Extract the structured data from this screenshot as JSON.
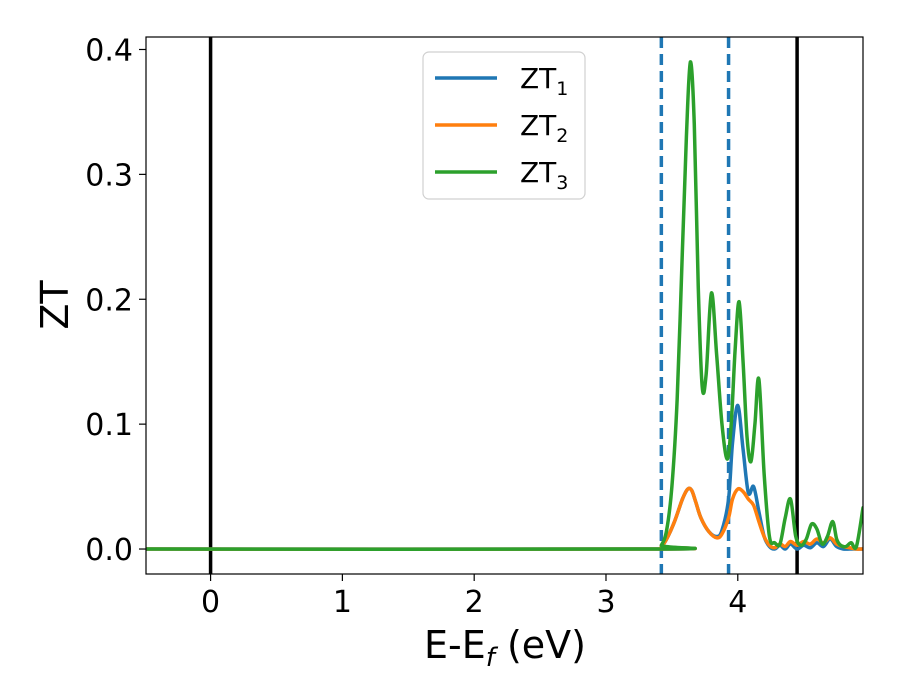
{
  "chart_data": {
    "type": "line",
    "title": "",
    "xlabel": {
      "main": "E-E",
      "sub": "f",
      "tail": " (eV)"
    },
    "ylabel": "ZT",
    "xlim": [
      -0.49,
      4.95
    ],
    "ylim": [
      -0.02,
      0.41
    ],
    "xticks": [
      0,
      1,
      2,
      3,
      4
    ],
    "xtick_labels": [
      "0",
      "1",
      "2",
      "3",
      "4"
    ],
    "yticks": [
      0.0,
      0.1,
      0.2,
      0.3,
      0.4
    ],
    "ytick_labels": [
      "0.0",
      "0.1",
      "0.2",
      "0.3",
      "0.4"
    ],
    "grid": false,
    "legend_position": "top-center",
    "vlines_solid": [
      0.0,
      4.45
    ],
    "vlines_dashed": [
      3.42,
      3.93
    ],
    "series": [
      {
        "name": "ZT",
        "name_sub": "1",
        "color": "#1f77b4",
        "x": [
          -0.49,
          3.38,
          3.42,
          3.46,
          3.52,
          3.58,
          3.62,
          3.65,
          3.68,
          3.72,
          3.78,
          3.84,
          3.88,
          3.93,
          3.96,
          4.0,
          4.04,
          4.08,
          4.12,
          4.16,
          4.2,
          4.24,
          4.28,
          4.32,
          4.36,
          4.4,
          4.45,
          4.5,
          4.55,
          4.6,
          4.65,
          4.7,
          4.75,
          4.8,
          4.85,
          4.9,
          4.95
        ],
        "y": [
          0.0,
          0.0,
          0.002,
          0.008,
          0.022,
          0.04,
          0.048,
          0.047,
          0.038,
          0.025,
          0.014,
          0.01,
          0.015,
          0.04,
          0.085,
          0.115,
          0.08,
          0.045,
          0.05,
          0.03,
          0.01,
          0.002,
          0.0,
          0.003,
          0.0,
          0.004,
          0.0,
          0.003,
          0.001,
          0.005,
          0.002,
          0.008,
          0.002,
          0.0,
          0.0,
          0.0,
          0.0
        ]
      },
      {
        "name": "ZT",
        "name_sub": "2",
        "color": "#ff7f0e",
        "x": [
          -0.49,
          3.38,
          3.42,
          3.46,
          3.52,
          3.58,
          3.62,
          3.65,
          3.68,
          3.72,
          3.78,
          3.84,
          3.88,
          3.93,
          3.96,
          4.0,
          4.04,
          4.08,
          4.12,
          4.16,
          4.2,
          4.24,
          4.28,
          4.32,
          4.36,
          4.4,
          4.45,
          4.5,
          4.55,
          4.6,
          4.65,
          4.7,
          4.75,
          4.8,
          4.85,
          4.9,
          4.95
        ],
        "y": [
          0.0,
          0.0,
          0.002,
          0.008,
          0.022,
          0.04,
          0.048,
          0.047,
          0.038,
          0.025,
          0.014,
          0.009,
          0.012,
          0.025,
          0.04,
          0.048,
          0.046,
          0.04,
          0.035,
          0.022,
          0.01,
          0.003,
          0.001,
          0.004,
          0.002,
          0.006,
          0.003,
          0.006,
          0.004,
          0.008,
          0.005,
          0.009,
          0.004,
          0.002,
          0.001,
          0.0,
          0.0
        ]
      },
      {
        "name": "ZT",
        "name_sub": "3",
        "color": "#2ca02c",
        "x": [
          -0.49,
          3.38,
          3.42,
          3.46,
          3.5,
          3.54,
          3.58,
          3.61,
          3.64,
          3.67,
          3.7,
          3.73,
          3.76,
          3.8,
          3.84,
          3.88,
          3.92,
          3.95,
          3.98,
          4.01,
          4.04,
          4.07,
          4.1,
          4.13,
          4.16,
          4.2,
          4.24,
          4.28,
          4.32,
          4.36,
          4.4,
          4.44,
          4.48,
          4.52,
          4.56,
          4.6,
          4.64,
          4.68,
          4.72,
          4.75,
          4.78,
          4.82,
          4.86,
          4.9,
          4.95
        ],
        "y": [
          0.0,
          0.0,
          0.003,
          0.015,
          0.05,
          0.12,
          0.24,
          0.33,
          0.39,
          0.34,
          0.21,
          0.13,
          0.14,
          0.205,
          0.155,
          0.1,
          0.072,
          0.1,
          0.16,
          0.198,
          0.15,
          0.09,
          0.07,
          0.1,
          0.136,
          0.06,
          0.01,
          0.005,
          0.004,
          0.025,
          0.04,
          0.01,
          0.003,
          0.008,
          0.02,
          0.016,
          0.004,
          0.01,
          0.022,
          0.008,
          0.003,
          0.002,
          0.005,
          0.002,
          0.033
        ]
      }
    ]
  }
}
